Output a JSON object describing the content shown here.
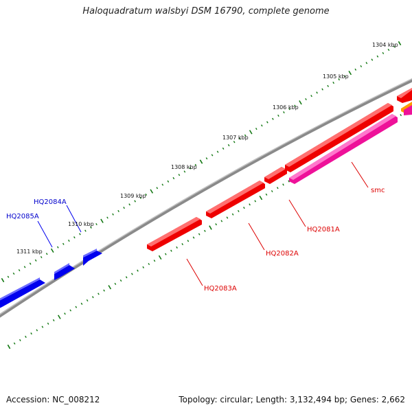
{
  "title": "Haloquadratum walsbyi DSM 16790, complete genome",
  "footer": {
    "accession": "Accession: NC_008212",
    "stats": "Topology: circular; Length: 3,132,494 bp; Genes: 2,662"
  },
  "ticks": [
    {
      "label": "1304 kbp"
    },
    {
      "label": "1305 kbp"
    },
    {
      "label": "1306 kbp"
    },
    {
      "label": "1307 kbp"
    },
    {
      "label": "1308 kbp"
    },
    {
      "label": "1309 kbp"
    },
    {
      "label": "1310 kbp"
    },
    {
      "label": "1311 kbp"
    }
  ],
  "genes": [
    {
      "label": "HQ2085A",
      "color": "#0000cc"
    },
    {
      "label": "HQ2084A",
      "color": "#0000cc"
    },
    {
      "label": "HQ2083A",
      "color": "#dd0000"
    },
    {
      "label": "HQ2082A",
      "color": "#dd0000"
    },
    {
      "label": "HQ2081A",
      "color": "#dd0000"
    },
    {
      "label": "smc",
      "color": "#dd0000"
    }
  ],
  "colors": {
    "forward_strand": "#0000ff",
    "reverse_strand": "#ff0000",
    "smc_gene": "#ff33aa",
    "orange_gene": "#ff9900",
    "backbone": "#777777",
    "tick_marks": "#117711"
  }
}
